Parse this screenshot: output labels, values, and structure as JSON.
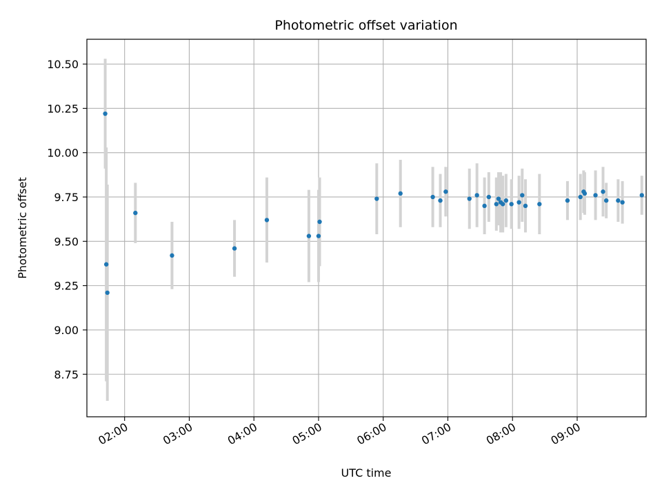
{
  "chart_data": {
    "type": "scatter",
    "title": "Photometric offset variation",
    "xlabel": "UTC time",
    "ylabel": "Photometric offset",
    "xlim": [
      "01:25",
      "10:04"
    ],
    "ylim": [
      8.51,
      10.64
    ],
    "x_ticks": [
      "02:00",
      "03:00",
      "04:00",
      "05:00",
      "06:00",
      "07:00",
      "08:00",
      "09:00"
    ],
    "y_ticks": [
      8.75,
      9.0,
      9.25,
      9.5,
      9.75,
      10.0,
      10.25,
      10.5
    ],
    "grid": true,
    "colors": {
      "point": "#1f77b4",
      "errorbar": "#d3d3d3",
      "grid": "#b0b0b0"
    },
    "points": [
      {
        "x": "01:42",
        "y": 10.22,
        "err": 0.31
      },
      {
        "x": "01:43",
        "y": 9.37,
        "err": 0.66
      },
      {
        "x": "01:44",
        "y": 9.21,
        "err": 0.61
      },
      {
        "x": "02:10",
        "y": 9.66,
        "err": 0.17
      },
      {
        "x": "02:44",
        "y": 9.42,
        "err": 0.19
      },
      {
        "x": "03:42",
        "y": 9.46,
        "err": 0.16
      },
      {
        "x": "04:12",
        "y": 9.62,
        "err": 0.24
      },
      {
        "x": "04:51",
        "y": 9.53,
        "err": 0.26
      },
      {
        "x": "05:00",
        "y": 9.53,
        "err": 0.26
      },
      {
        "x": "05:01",
        "y": 9.61,
        "err": 0.25
      },
      {
        "x": "05:54",
        "y": 9.74,
        "err": 0.2
      },
      {
        "x": "06:16",
        "y": 9.77,
        "err": 0.19
      },
      {
        "x": "06:46",
        "y": 9.75,
        "err": 0.17
      },
      {
        "x": "06:53",
        "y": 9.73,
        "err": 0.15
      },
      {
        "x": "06:58",
        "y": 9.78,
        "err": 0.14
      },
      {
        "x": "07:20",
        "y": 9.74,
        "err": 0.17
      },
      {
        "x": "07:27",
        "y": 9.76,
        "err": 0.18
      },
      {
        "x": "07:34",
        "y": 9.7,
        "err": 0.16
      },
      {
        "x": "07:38",
        "y": 9.75,
        "err": 0.14
      },
      {
        "x": "07:45",
        "y": 9.71,
        "err": 0.15
      },
      {
        "x": "07:47",
        "y": 9.74,
        "err": 0.15
      },
      {
        "x": "07:49",
        "y": 9.72,
        "err": 0.17
      },
      {
        "x": "07:51",
        "y": 9.71,
        "err": 0.16
      },
      {
        "x": "07:54",
        "y": 9.73,
        "err": 0.15
      },
      {
        "x": "07:59",
        "y": 9.71,
        "err": 0.14
      },
      {
        "x": "08:06",
        "y": 9.72,
        "err": 0.15
      },
      {
        "x": "08:09",
        "y": 9.76,
        "err": 0.15
      },
      {
        "x": "08:12",
        "y": 9.7,
        "err": 0.15
      },
      {
        "x": "08:25",
        "y": 9.71,
        "err": 0.17
      },
      {
        "x": "08:51",
        "y": 9.73,
        "err": 0.11
      },
      {
        "x": "09:03",
        "y": 9.75,
        "err": 0.13
      },
      {
        "x": "09:06",
        "y": 9.78,
        "err": 0.12
      },
      {
        "x": "09:07",
        "y": 9.77,
        "err": 0.12
      },
      {
        "x": "09:17",
        "y": 9.76,
        "err": 0.14
      },
      {
        "x": "09:24",
        "y": 9.78,
        "err": 0.14
      },
      {
        "x": "09:27",
        "y": 9.73,
        "err": 0.1
      },
      {
        "x": "09:38",
        "y": 9.73,
        "err": 0.12
      },
      {
        "x": "09:42",
        "y": 9.72,
        "err": 0.12
      },
      {
        "x": "10:00",
        "y": 9.76,
        "err": 0.11
      }
    ]
  }
}
